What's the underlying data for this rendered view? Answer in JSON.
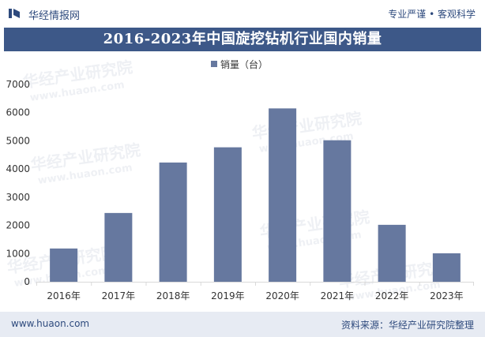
{
  "header": {
    "brand": "华经情报网",
    "right_text": "专业严谨 • 客观科学"
  },
  "title": "2016-2023年中国旋挖钻机行业国内销量",
  "footer": {
    "url": "www.huaon.com",
    "source": "资料来源：华经产业研究院整理"
  },
  "watermark": {
    "cn": "华经产业研究院",
    "en": "www.huaon.com"
  },
  "chart_data": {
    "type": "bar",
    "title": "2016-2023年中国旋挖钻机行业国内销量",
    "categories": [
      "2016年",
      "2017年",
      "2018年",
      "2019年",
      "2020年",
      "2021年",
      "2022年",
      "2023年"
    ],
    "series": [
      {
        "name": "销量（台）",
        "values": [
          1180,
          2440,
          4230,
          4770,
          6150,
          5020,
          2020,
          1010
        ]
      }
    ],
    "yticks": [
      "0",
      "1000",
      "2000",
      "3000",
      "4000",
      "5000",
      "6000",
      "7000"
    ],
    "ylim": [
      0,
      7000
    ],
    "legend_position": "top-center",
    "bar_color": "#66789f",
    "xlabel": "",
    "ylabel": ""
  }
}
